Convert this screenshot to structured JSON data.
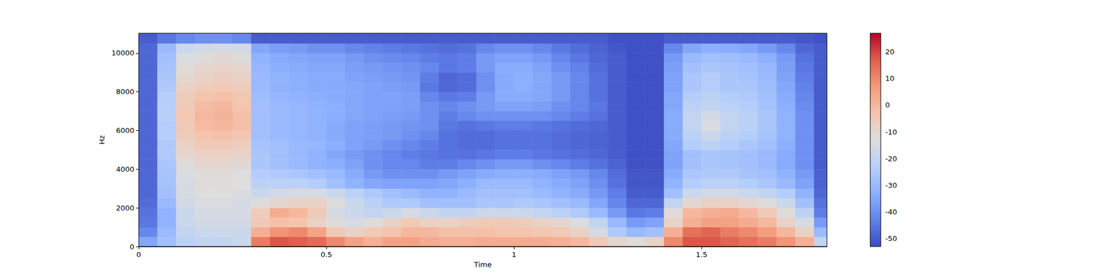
{
  "chart_data": {
    "type": "heatmap",
    "x_label": "Time",
    "y_label": "Hz",
    "xlim": [
      0,
      1.834
    ],
    "ylim": [
      0,
      11025
    ],
    "xticks": [
      0,
      0.5,
      1,
      1.5
    ],
    "yticks": [
      0,
      2000,
      4000,
      6000,
      8000,
      10000
    ],
    "x_edges": [
      0,
      0.05,
      0.1,
      0.15,
      0.2,
      0.25,
      0.3,
      0.35,
      0.4,
      0.45,
      0.5,
      0.55,
      0.6,
      0.65,
      0.7,
      0.75,
      0.8,
      0.85,
      0.9,
      0.95,
      1.0,
      1.05,
      1.1,
      1.15,
      1.2,
      1.25,
      1.3,
      1.35,
      1.4,
      1.45,
      1.5,
      1.55,
      1.6,
      1.65,
      1.7,
      1.75,
      1.8,
      1.834
    ],
    "y_edges": [
      0,
      500,
      1000,
      1500,
      2000,
      2500,
      3000,
      3500,
      4000,
      4500,
      5000,
      5500,
      6000,
      6500,
      7000,
      7500,
      8000,
      8500,
      9000,
      9500,
      10000,
      10500,
      11025
    ],
    "cells": [
      [
        -35,
        -42,
        -45,
        -46,
        -47,
        -48,
        -48,
        -48,
        -48,
        -48,
        -48,
        -48,
        -48,
        -48,
        -48,
        -48,
        -48,
        -48,
        -48,
        -48,
        -48,
        -50
      ],
      [
        -28,
        -30,
        -32,
        -32,
        -30,
        -28,
        -27,
        -27,
        -26,
        -25,
        -25,
        -24,
        -24,
        -23,
        -23,
        -24,
        -25,
        -26,
        -27,
        -28,
        -30,
        -45
      ],
      [
        -22,
        -20,
        -18,
        -18,
        -16,
        -15,
        -15,
        -14,
        -12,
        -10,
        -8,
        -6,
        -5,
        -4,
        -5,
        -6,
        -8,
        -10,
        -12,
        -14,
        -18,
        -42
      ],
      [
        -20,
        -18,
        -16,
        -15,
        -14,
        -13,
        -12,
        -12,
        -10,
        -8,
        -5,
        -3,
        -1,
        0,
        -1,
        -3,
        -6,
        -8,
        -10,
        -12,
        -16,
        -40
      ],
      [
        -20,
        -18,
        -16,
        -15,
        -14,
        -13,
        -12,
        -12,
        -10,
        -8,
        -5,
        -2,
        0,
        1,
        0,
        -2,
        -5,
        -7,
        -9,
        -11,
        -15,
        -40
      ],
      [
        -18,
        -18,
        -16,
        -15,
        -15,
        -14,
        -13,
        -13,
        -11,
        -9,
        -7,
        -4,
        -2,
        -2,
        -3,
        -4,
        -6,
        -8,
        -10,
        -12,
        -16,
        -42
      ],
      [
        12,
        2,
        -5,
        -6,
        -12,
        -18,
        -22,
        -24,
        -26,
        -26,
        -27,
        -28,
        -28,
        -28,
        -28,
        -29,
        -30,
        -30,
        -31,
        -32,
        -35,
        -50
      ],
      [
        18,
        8,
        -2,
        3,
        -10,
        -16,
        -22,
        -25,
        -28,
        -28,
        -28,
        -30,
        -30,
        -30,
        -30,
        -31,
        -32,
        -32,
        -33,
        -34,
        -37,
        -50
      ],
      [
        17,
        10,
        -3,
        0,
        -8,
        -15,
        -22,
        -26,
        -30,
        -30,
        -30,
        -31,
        -31,
        -31,
        -31,
        -32,
        -33,
        -33,
        -34,
        -35,
        -38,
        -50
      ],
      [
        15,
        5,
        -8,
        -5,
        -8,
        -15,
        -24,
        -28,
        -32,
        -32,
        -31,
        -32,
        -32,
        -32,
        -32,
        -33,
        -34,
        -34,
        -35,
        -36,
        -40,
        -50
      ],
      [
        10,
        -5,
        -12,
        -15,
        -12,
        -18,
        -28,
        -30,
        -33,
        -35,
        -33,
        -34,
        -34,
        -33,
        -33,
        -34,
        -34,
        -34,
        -35,
        -36,
        -40,
        -50
      ],
      [
        5,
        -8,
        -15,
        -18,
        -18,
        -22,
        -32,
        -34,
        -36,
        -38,
        -36,
        -36,
        -36,
        -35,
        -35,
        -35,
        -35,
        -36,
        -37,
        -38,
        -42,
        -50
      ],
      [
        2,
        -5,
        -12,
        -20,
        -22,
        -25,
        -35,
        -38,
        -40,
        -40,
        -38,
        -37,
        -37,
        -36,
        -36,
        -36,
        -36,
        -37,
        -38,
        -40,
        -43,
        -50
      ],
      [
        5,
        -3,
        -8,
        -18,
        -25,
        -28,
        -36,
        -40,
        -42,
        -42,
        -40,
        -38,
        -38,
        -37,
        -36,
        -36,
        -37,
        -38,
        -39,
        -41,
        -44,
        -50
      ],
      [
        5,
        0,
        -5,
        -15,
        -25,
        -30,
        -36,
        -40,
        -42,
        -44,
        -42,
        -40,
        -39,
        -38,
        -37,
        -37,
        -38,
        -39,
        -40,
        -42,
        -45,
        -50
      ],
      [
        3,
        0,
        -8,
        -18,
        -28,
        -32,
        -36,
        -40,
        -44,
        -45,
        -44,
        -42,
        -40,
        -40,
        -40,
        -42,
        -45,
        -44,
        -42,
        -44,
        -46,
        -50
      ],
      [
        2,
        -2,
        -8,
        -20,
        -28,
        -32,
        -35,
        -38,
        -44,
        -46,
        -46,
        -46,
        -45,
        -44,
        -42,
        -45,
        -48,
        -48,
        -45,
        -45,
        -47,
        -50
      ],
      [
        2,
        -2,
        -6,
        -20,
        -28,
        -30,
        -33,
        -36,
        -42,
        -46,
        -47,
        -47,
        -46,
        -42,
        -40,
        -44,
        -47,
        -47,
        -44,
        -44,
        -46,
        -50
      ],
      [
        3,
        -2,
        -5,
        -18,
        -26,
        -28,
        -30,
        -34,
        -40,
        -45,
        -47,
        -47,
        -45,
        -40,
        -38,
        -38,
        -40,
        -40,
        -38,
        -38,
        -42,
        -50
      ],
      [
        3,
        -3,
        -5,
        -18,
        -26,
        -28,
        -30,
        -33,
        -38,
        -44,
        -46,
        -46,
        -44,
        -40,
        -36,
        -34,
        -34,
        -34,
        -34,
        -36,
        -40,
        -50
      ],
      [
        3,
        -3,
        -6,
        -18,
        -25,
        -28,
        -30,
        -33,
        -38,
        -44,
        -46,
        -46,
        -44,
        -40,
        -36,
        -34,
        -33,
        -33,
        -34,
        -36,
        -40,
        -50
      ],
      [
        3,
        -4,
        -8,
        -20,
        -26,
        -30,
        -32,
        -34,
        -40,
        -45,
        -46,
        -46,
        -45,
        -40,
        -37,
        -35,
        -35,
        -35,
        -36,
        -38,
        -42,
        -50
      ],
      [
        2,
        -5,
        -10,
        -22,
        -28,
        -32,
        -34,
        -36,
        -42,
        -46,
        -47,
        -47,
        -46,
        -42,
        -40,
        -38,
        -38,
        -38,
        -40,
        -42,
        -45,
        -50
      ],
      [
        0,
        -8,
        -14,
        -25,
        -30,
        -34,
        -36,
        -38,
        -44,
        -47,
        -48,
        -48,
        -47,
        -44,
        -42,
        -42,
        -42,
        -42,
        -43,
        -45,
        -47,
        -50
      ],
      [
        -5,
        -15,
        -20,
        -30,
        -35,
        -38,
        -40,
        -42,
        -46,
        -48,
        -49,
        -49,
        -48,
        -46,
        -45,
        -46,
        -46,
        -46,
        -47,
        -48,
        -49,
        -50
      ],
      [
        -10,
        -25,
        -30,
        -38,
        -42,
        -44,
        -46,
        -47,
        -49,
        -50,
        -50,
        -50,
        -50,
        -50,
        -50,
        -50,
        -50,
        -50,
        -50,
        -50,
        -51,
        -52
      ],
      [
        -12,
        -30,
        -38,
        -45,
        -48,
        -50,
        -51,
        -51,
        -52,
        -52,
        -52,
        -52,
        -52,
        -52,
        -52,
        -52,
        -52,
        -52,
        -52,
        -52,
        -52,
        -52
      ],
      [
        -8,
        -28,
        -36,
        -44,
        -48,
        -50,
        -51,
        -51,
        -52,
        -52,
        -52,
        -52,
        -52,
        -52,
        -52,
        -52,
        -52,
        -52,
        -52,
        -52,
        -52,
        -52
      ],
      [
        10,
        2,
        -8,
        -12,
        -20,
        -28,
        -32,
        -34,
        -36,
        -36,
        -35,
        -34,
        -34,
        -34,
        -35,
        -35,
        -36,
        -36,
        -37,
        -38,
        -42,
        -50
      ],
      [
        18,
        14,
        2,
        0,
        -10,
        -18,
        -24,
        -26,
        -28,
        -28,
        -24,
        -22,
        -20,
        -20,
        -22,
        -24,
        -26,
        -26,
        -28,
        -30,
        -35,
        -50
      ],
      [
        18,
        16,
        5,
        2,
        -8,
        -16,
        -22,
        -25,
        -26,
        -26,
        -22,
        -18,
        -14,
        -16,
        -20,
        -22,
        -24,
        -24,
        -26,
        -28,
        -33,
        -50
      ],
      [
        16,
        12,
        5,
        3,
        -8,
        -16,
        -22,
        -25,
        -27,
        -27,
        -24,
        -22,
        -20,
        -20,
        -22,
        -24,
        -26,
        -26,
        -27,
        -29,
        -34,
        -50
      ],
      [
        14,
        10,
        3,
        0,
        -10,
        -18,
        -24,
        -27,
        -28,
        -28,
        -26,
        -24,
        -22,
        -22,
        -24,
        -25,
        -26,
        -27,
        -28,
        -30,
        -35,
        -50
      ],
      [
        12,
        6,
        0,
        -5,
        -12,
        -20,
        -26,
        -28,
        -30,
        -30,
        -28,
        -27,
        -26,
        -26,
        -27,
        -28,
        -29,
        -30,
        -31,
        -33,
        -38,
        -50
      ],
      [
        8,
        0,
        -8,
        -12,
        -18,
        -24,
        -30,
        -32,
        -34,
        -34,
        -33,
        -32,
        -32,
        -32,
        -33,
        -34,
        -35,
        -36,
        -37,
        -38,
        -42,
        -50
      ],
      [
        2,
        -8,
        -15,
        -22,
        -28,
        -32,
        -36,
        -38,
        -40,
        -40,
        -40,
        -40,
        -40,
        -40,
        -41,
        -42,
        -43,
        -44,
        -45,
        -46,
        -48,
        -51
      ],
      [
        -20,
        -30,
        -38,
        -44,
        -46,
        -48,
        -49,
        -49,
        -50,
        -50,
        -50,
        -50,
        -50,
        -50,
        -50,
        -50,
        -50,
        -50,
        -50,
        -50,
        -50,
        -52
      ]
    ],
    "colorbar": {
      "range": [
        -53,
        27
      ],
      "ticks": [
        -50,
        -40,
        -30,
        -20,
        -10,
        0,
        10,
        20
      ]
    }
  }
}
